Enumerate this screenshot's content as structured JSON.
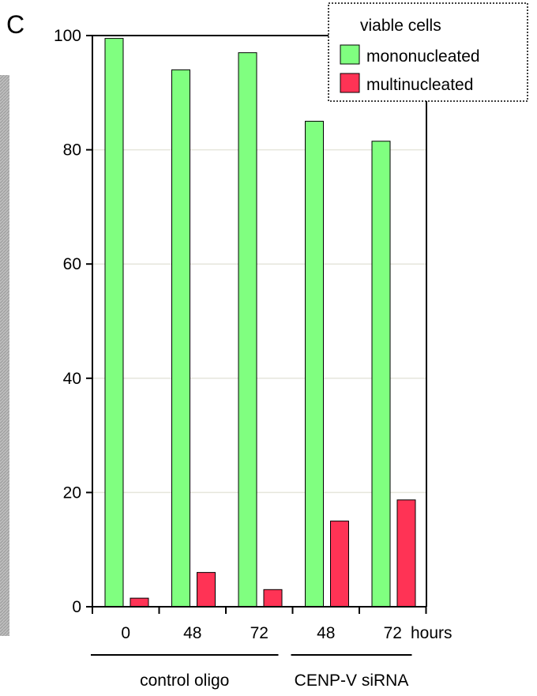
{
  "panel_label": "C",
  "chart_data": {
    "type": "bar",
    "categories": [
      "0",
      "48",
      "72",
      "48",
      "72"
    ],
    "x_unit_label": "hours",
    "groups": [
      {
        "label": "control oligo",
        "category_indices": [
          0,
          1,
          2
        ]
      },
      {
        "label": "CENP-V siRNA",
        "category_indices": [
          3,
          4
        ]
      }
    ],
    "series": [
      {
        "name": "mononucleated",
        "values": [
          99.5,
          94,
          97,
          85,
          81.5
        ],
        "color": "#80FF80"
      },
      {
        "name": "multinucleated",
        "values": [
          1.5,
          6,
          3,
          15,
          18.7
        ],
        "color": "#FF3355"
      }
    ],
    "legend_title": "viable cells",
    "legend_position": "top-right",
    "ylim": [
      0,
      100
    ],
    "yticks": [
      0,
      20,
      40,
      60,
      80,
      100
    ],
    "grid": true,
    "title": "",
    "xlabel": "",
    "ylabel": ""
  }
}
